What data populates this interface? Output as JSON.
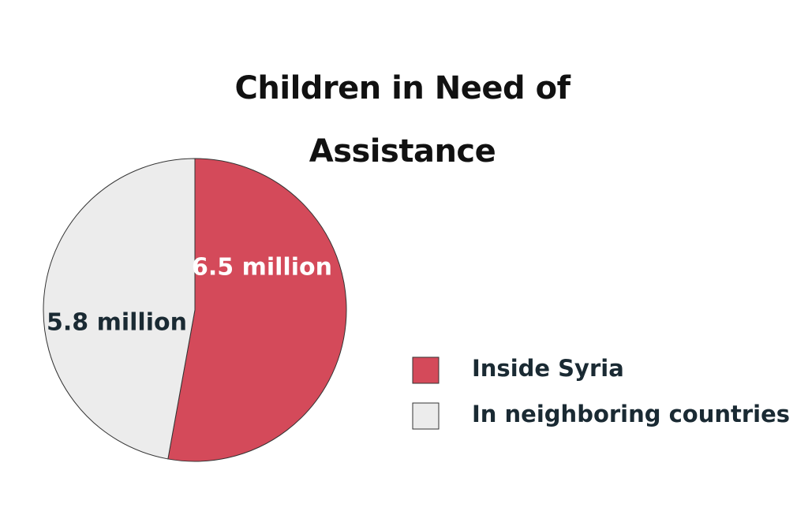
{
  "chart_data": {
    "type": "pie",
    "title": "Children in Need of Assistance",
    "categories": [
      "Inside Syria",
      "In neighboring countries"
    ],
    "values": [
      6.5,
      5.8
    ],
    "value_labels": [
      "6.5 million",
      "5.8 million"
    ],
    "colors": [
      "#d44a5a",
      "#ececec"
    ],
    "legend": "right"
  }
}
